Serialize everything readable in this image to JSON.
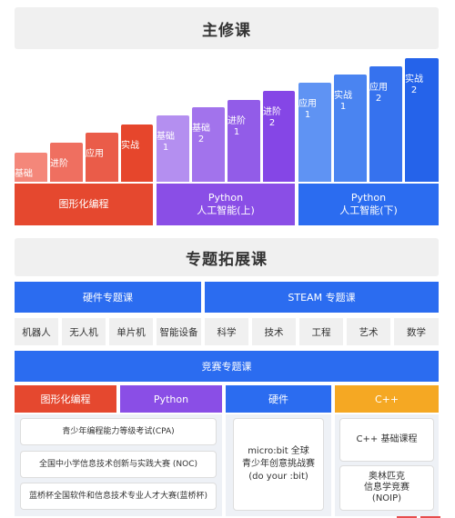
{
  "main_course": {
    "title": "主修课",
    "steps": [
      "基础",
      "进阶",
      "应用",
      "实战",
      "基础\n1",
      "基础\n2",
      "进阶\n1",
      "进阶\n2",
      "应用\n1",
      "实战\n1",
      "应用\n2",
      "实战\n2"
    ],
    "tracks": [
      "图形化编程",
      "Python\n人工智能(上)",
      "Python\n人工智能(下)"
    ]
  },
  "special_course": {
    "title": "专题拓展课",
    "hardware_title": "硬件专题课",
    "steam_title": "STEAM 专题课",
    "hardware_items": [
      "机器人",
      "无人机",
      "单片机",
      "智能设备"
    ],
    "steam_items": [
      "科学",
      "技术",
      "工程",
      "艺术",
      "数学"
    ],
    "competition_title": "竞赛专题课",
    "categories": [
      "图形化编程",
      "Python",
      "硬件",
      "C++"
    ],
    "competitions_left": [
      "青少年编程能力等级考试(CPA)",
      "全国中小学信息技术创新与实践大赛 (NOC)",
      "蓝桥杯全国软件和信息技术专业人才大赛(蓝桥杯)"
    ],
    "competition_mid": "micro:bit 全球\n青少年创意挑战赛\n(do your :bit)",
    "competitions_right": [
      "C++ 基础课程",
      "奥林匹克\n信息学竞赛\n(NOIP)"
    ]
  }
}
